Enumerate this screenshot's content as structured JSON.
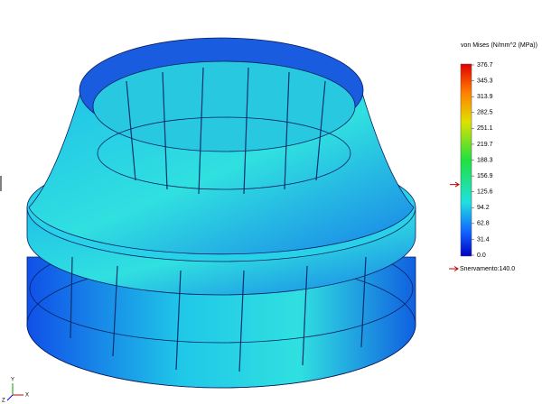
{
  "legend": {
    "title": "von Mises (N/mm^2 (MPa))",
    "ticks": [
      376.7,
      345.3,
      313.9,
      282.5,
      251.1,
      219.7,
      188.3,
      156.9,
      125.6,
      94.2,
      62.8,
      31.4,
      {
        "value": 0,
        "label": "0.0"
      }
    ],
    "yield": {
      "value": 140,
      "label": "Snervamento:140.0"
    }
  },
  "triad": {
    "x": "X",
    "y": "Y",
    "z": "Z"
  }
}
